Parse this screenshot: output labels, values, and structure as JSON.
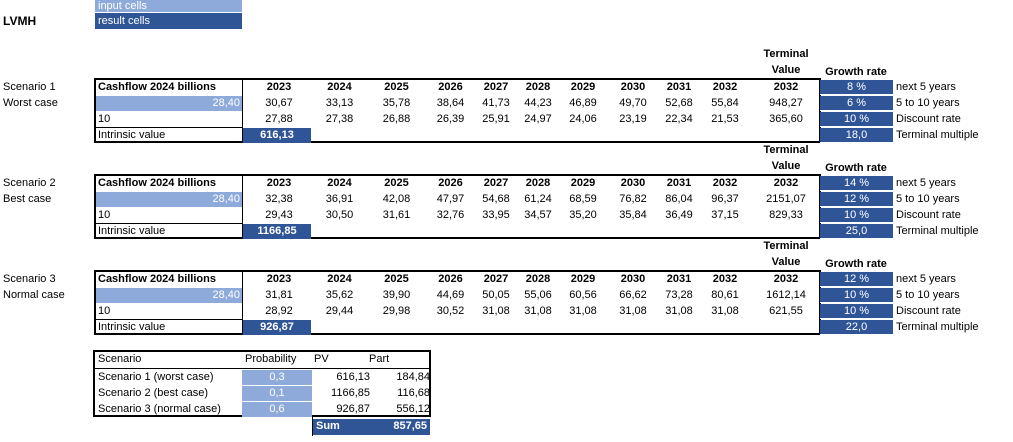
{
  "legend": {
    "input": "input cells",
    "result": "result cells"
  },
  "company": "LVMH",
  "scenarios": [
    {
      "name": "Scenario 1",
      "case": "Worst case",
      "header_label": "Cashflow 2024 billions",
      "cashflow": "28,40",
      "years_input": "10",
      "intrinsic_label": "Intrinsic value",
      "intrinsic_value": "616,13",
      "years": [
        "2023",
        "2024",
        "2025",
        "2026",
        "2027",
        "2028",
        "2029",
        "2030",
        "2031",
        "2032"
      ],
      "terminal_header": [
        "Terminal",
        "Value"
      ],
      "terminal_year": "2032",
      "cashflows": [
        "30,67",
        "33,13",
        "35,78",
        "38,64",
        "41,73",
        "44,23",
        "46,89",
        "49,70",
        "52,68",
        "55,84"
      ],
      "terminal_cf": "948,27",
      "discounted": [
        "27,88",
        "27,38",
        "26,88",
        "26,39",
        "25,91",
        "24,97",
        "24,06",
        "23,19",
        "22,34",
        "21,53"
      ],
      "terminal_disc": "365,60",
      "growth_header": "Growth rate",
      "rates": [
        "8 %",
        "6 %",
        "10 %",
        "18,0"
      ]
    },
    {
      "name": "Scenario 2",
      "case": "Best case",
      "header_label": "Cashflow 2024 billions",
      "cashflow": "28,40",
      "years_input": "10",
      "intrinsic_label": "Intrinsic value",
      "intrinsic_value": "1166,85",
      "years": [
        "2023",
        "2024",
        "2025",
        "2026",
        "2027",
        "2028",
        "2029",
        "2030",
        "2031",
        "2032"
      ],
      "terminal_header": [
        "Terminal",
        "Value"
      ],
      "terminal_year": "2032",
      "cashflows": [
        "32,38",
        "36,91",
        "42,08",
        "47,97",
        "54,68",
        "61,24",
        "68,59",
        "76,82",
        "86,04",
        "96,37"
      ],
      "terminal_cf": "2151,07",
      "discounted": [
        "29,43",
        "30,50",
        "31,61",
        "32,76",
        "33,95",
        "34,57",
        "35,20",
        "35,84",
        "36,49",
        "37,15"
      ],
      "terminal_disc": "829,33",
      "growth_header": "Growth rate",
      "rates": [
        "14 %",
        "12 %",
        "10 %",
        "25,0"
      ]
    },
    {
      "name": "Scenario 3",
      "case": "Normal case",
      "header_label": "Cashflow 2024 billions",
      "cashflow": "28,40",
      "years_input": "10",
      "intrinsic_label": "Intrinsic value",
      "intrinsic_value": "926,87",
      "years": [
        "2023",
        "2024",
        "2025",
        "2026",
        "2027",
        "2028",
        "2029",
        "2030",
        "2031",
        "2032"
      ],
      "terminal_header": [
        "Terminal",
        "Value"
      ],
      "terminal_year": "2032",
      "cashflows": [
        "31,81",
        "35,62",
        "39,90",
        "44,69",
        "50,05",
        "55,06",
        "60,56",
        "66,62",
        "73,28",
        "80,61"
      ],
      "terminal_cf": "1612,14",
      "discounted": [
        "28,92",
        "29,44",
        "29,98",
        "30,52",
        "31,08",
        "31,08",
        "31,08",
        "31,08",
        "31,08",
        "31,08"
      ],
      "terminal_disc": "621,55",
      "growth_header": "Growth rate",
      "rates": [
        "12 %",
        "10 %",
        "10 %",
        "22,0"
      ]
    }
  ],
  "rate_labels": [
    "next 5 years",
    "5 to 10 years",
    "Discount rate",
    "Terminal multiple"
  ],
  "summary": {
    "headers": [
      "Scenario",
      "Probability",
      "PV",
      "Part"
    ],
    "rows": [
      {
        "name": "Scenario 1 (worst case)",
        "prob": "0,3",
        "pv": "616,13",
        "part": "184,84"
      },
      {
        "name": "Scenario 2 (best case)",
        "prob": "0,1",
        "pv": "1166,85",
        "part": "116,68"
      },
      {
        "name": "Scenario 3 (normal case)",
        "prob": "0,6",
        "pv": "926,87",
        "part": "556,12"
      }
    ],
    "sum_label": "Sum",
    "sum_value": "857,65"
  }
}
